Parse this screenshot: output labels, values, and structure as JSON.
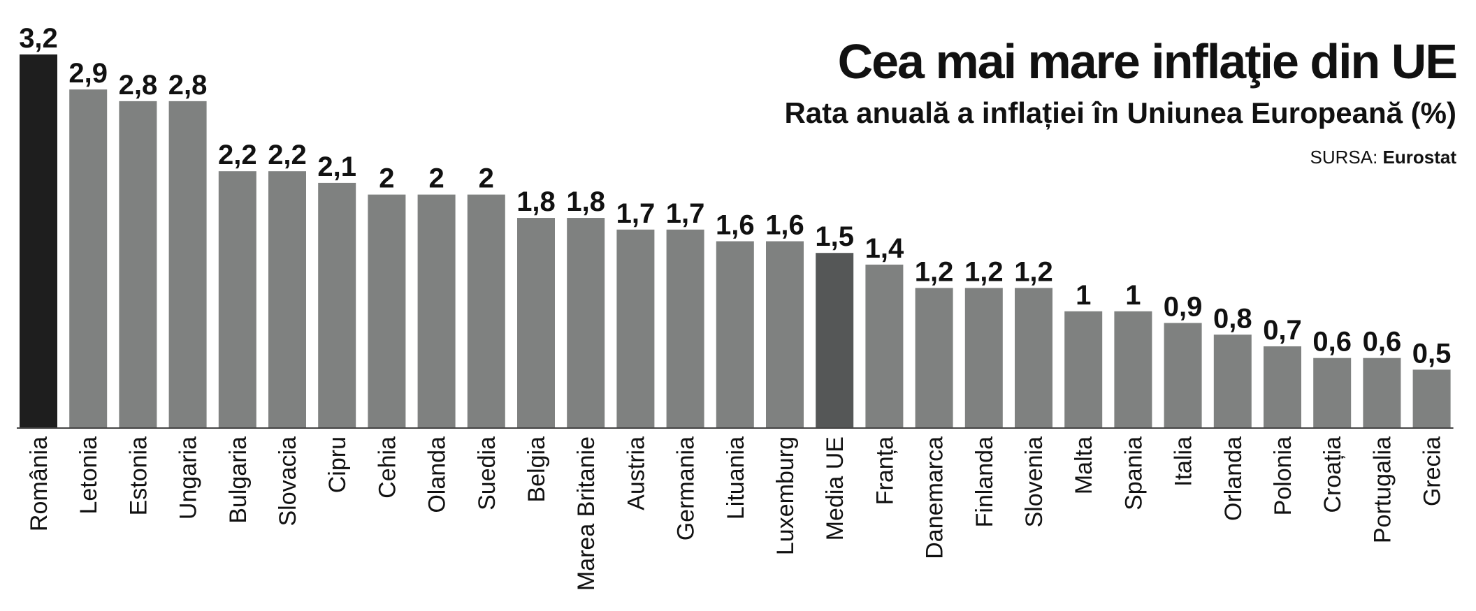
{
  "chart_data": {
    "type": "bar",
    "title": "Cea mai mare inflaţie din UE",
    "subtitle": "Rata anuală a inflației în Uniunea Europeană (%)",
    "source_prefix": "SURSA:",
    "source_name": "Eurostat",
    "categories": [
      "România",
      "Letonia",
      "Estonia",
      "Ungaria",
      "Bulgaria",
      "Slovacia",
      "Cipru",
      "Cehia",
      "Olanda",
      "Suedia",
      "Belgia",
      "Marea Britanie",
      "Austria",
      "Germania",
      "Lituania",
      "Luxemburg",
      "Media UE",
      "Franța",
      "Danemarca",
      "Finlanda",
      "Slovenia",
      "Malta",
      "Spania",
      "Italia",
      "Orlanda",
      "Polonia",
      "Croația",
      "Portugalia",
      "Grecia"
    ],
    "values": [
      3.2,
      2.9,
      2.8,
      2.8,
      2.2,
      2.2,
      2.1,
      2,
      2,
      2,
      1.8,
      1.8,
      1.7,
      1.7,
      1.6,
      1.6,
      1.5,
      1.4,
      1.2,
      1.2,
      1.2,
      1,
      1,
      0.9,
      0.8,
      0.7,
      0.6,
      0.6,
      0.5
    ],
    "value_labels": [
      "3,2",
      "2,9",
      "2,8",
      "2,8",
      "2,2",
      "2,2",
      "2,1",
      "2",
      "2",
      "2",
      "1,8",
      "1,8",
      "1,7",
      "1,7",
      "1,6",
      "1,6",
      "1,5",
      "1,4",
      "1,2",
      "1,2",
      "1,2",
      "1",
      "1",
      "0,9",
      "0,8",
      "0,7",
      "0,6",
      "0,6",
      "0,5"
    ],
    "ylim": [
      0,
      3.2
    ],
    "colors": {
      "default": "#7f8180",
      "highlight_max": "#1e1e1e",
      "highlight_avg": "#555757"
    },
    "highlight_max_category": "România",
    "highlight_avg_category": "Media UE",
    "grid": false,
    "legend": "none"
  }
}
